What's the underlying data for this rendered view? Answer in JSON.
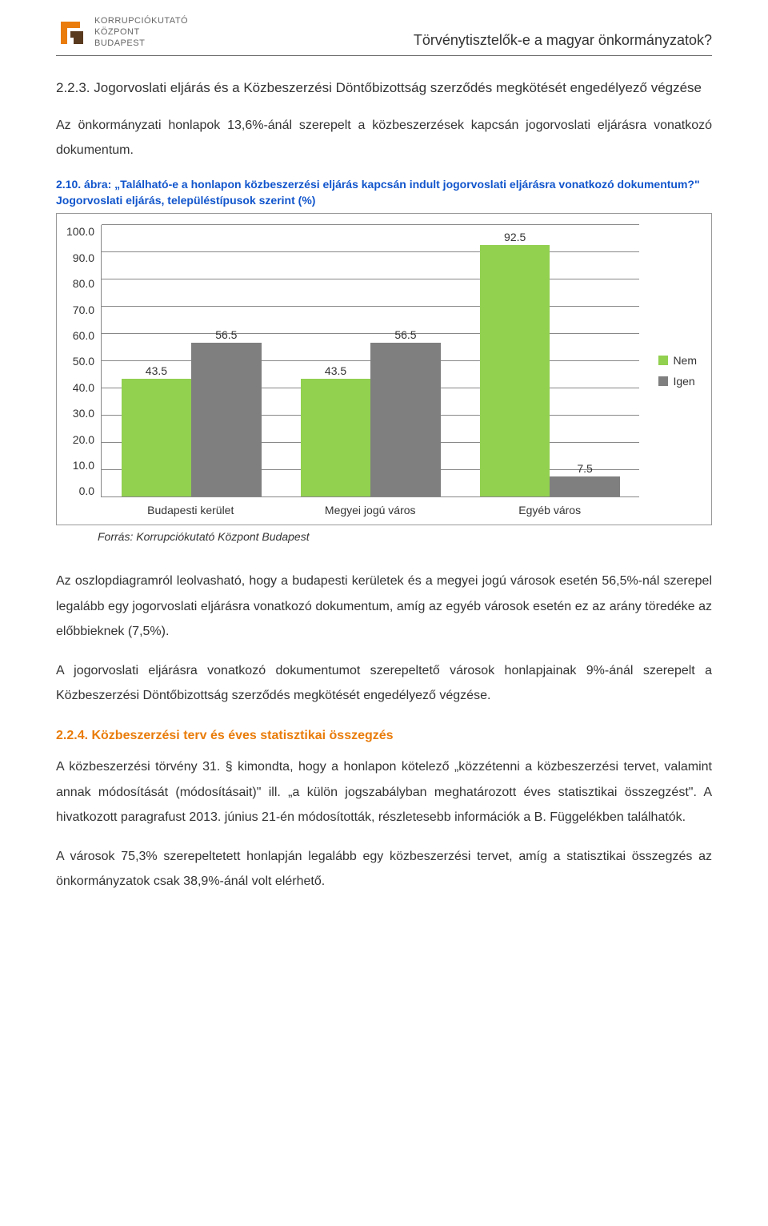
{
  "header": {
    "org_line1": "KORRUPCIÓKUTATÓ",
    "org_line2": "KÖZPONT",
    "org_line3": "BUDAPEST",
    "doc_title": "Törvénytisztelők-e a magyar önkormányzatok?",
    "logo_colors": {
      "dark": "#5a3a1f",
      "orange": "#e97c0a"
    }
  },
  "section1": {
    "heading": "2.2.3. Jogorvoslati eljárás és a Közbeszerzési Döntőbizottság szerződés megkötését engedélyező végzése",
    "para": "Az önkormányzati honlapok 13,6%-ánál szerepelt a közbeszerzések kapcsán jogorvoslati eljárásra vonatkozó dokumentum."
  },
  "chart": {
    "type": "bar",
    "caption_prefix": "2.10. ábra: ",
    "caption_main": "„Található-e a honlapon közbeszerzési eljárás kapcsán indult jogorvoslati eljárásra vonatkozó dokumentum?\" Jogorvoslati eljárás, településtípusok szerint (%)",
    "ylim": [
      0,
      100
    ],
    "ytick_step": 10,
    "yticks": [
      "100.0",
      "90.0",
      "80.0",
      "70.0",
      "60.0",
      "50.0",
      "40.0",
      "30.0",
      "20.0",
      "10.0",
      "0.0"
    ],
    "categories": [
      "Budapesti kerület",
      "Megyei jogú város",
      "Egyéb város"
    ],
    "series": [
      {
        "name": "Nem",
        "color": "#92d050",
        "values": [
          43.5,
          43.5,
          92.5
        ]
      },
      {
        "name": "Igen",
        "color": "#7f7f7f",
        "values": [
          56.5,
          56.5,
          7.5
        ]
      }
    ],
    "grid_color": "#888888",
    "background_color": "#ffffff",
    "label_fontsize": 14,
    "source": "Forrás: Korrupciókutató Központ Budapest"
  },
  "paragraphs": {
    "p1": "Az oszlopdiagramról leolvasható, hogy a budapesti kerületek és a megyei jogú városok esetén 56,5%-nál szerepel legalább egy jogorvoslati eljárásra vonatkozó dokumentum, amíg az egyéb városok esetén ez az arány töredéke az előbbieknek (7,5%).",
    "p2": "A jogorvoslati eljárásra vonatkozó dokumentumot szerepeltető városok honlapjainak 9%-ánál szerepelt a Közbeszerzési Döntőbizottság szerződés megkötését engedélyező végzése."
  },
  "section2": {
    "heading": "2.2.4. Közbeszerzési terv és éves statisztikai összegzés",
    "p1": "A közbeszerzési törvény 31. § kimondta, hogy a honlapon kötelező „közzétenni a közbeszerzési tervet, valamint annak módosítását (módosításait)\" ill. „a külön jogszabályban meghatározott éves statisztikai összegzést\". A hivatkozott paragrafust 2013. június 21-én módosították, részletesebb információk a B. Függelékben találhatók.",
    "p2": "A városok 75,3% szerepeltetett honlapján legalább egy közbeszerzési tervet, amíg a statisztikai összegzés az önkormányzatok csak 38,9%-ánál volt elérhető."
  }
}
